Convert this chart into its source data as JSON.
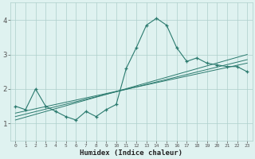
{
  "title": "",
  "xlabel": "Humidex (Indice chaleur)",
  "xlim": [
    -0.5,
    23.5
  ],
  "ylim": [
    0.5,
    4.5
  ],
  "xticks": [
    0,
    1,
    2,
    3,
    4,
    5,
    6,
    7,
    8,
    9,
    10,
    11,
    12,
    13,
    14,
    15,
    16,
    17,
    18,
    19,
    20,
    21,
    22,
    23
  ],
  "yticks": [
    1,
    2,
    3,
    4
  ],
  "bg_color": "#dff2f0",
  "line_color": "#2a7a6e",
  "grid_color": "#aecfcb",
  "data_x": [
    0,
    1,
    2,
    3,
    4,
    5,
    6,
    7,
    8,
    9,
    10,
    11,
    12,
    13,
    14,
    15,
    16,
    17,
    18,
    19,
    20,
    21,
    22,
    23
  ],
  "data_y": [
    1.5,
    1.4,
    2.0,
    1.5,
    1.35,
    1.2,
    1.1,
    1.35,
    1.2,
    1.4,
    1.55,
    2.6,
    3.2,
    3.85,
    4.05,
    3.85,
    3.2,
    2.8,
    2.9,
    2.75,
    2.7,
    2.65,
    2.65,
    2.5
  ],
  "trend_lines": [
    [
      0,
      1.1,
      23,
      3.0
    ],
    [
      0,
      1.2,
      23,
      2.85
    ],
    [
      0,
      1.3,
      23,
      2.75
    ]
  ],
  "fig_width": 3.2,
  "fig_height": 2.0,
  "dpi": 100
}
